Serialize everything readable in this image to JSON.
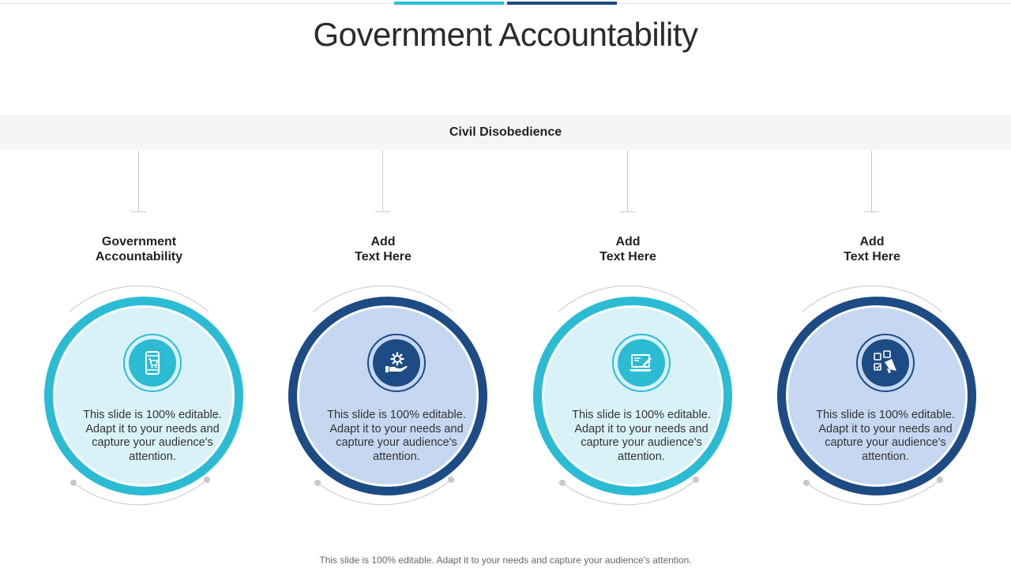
{
  "title": "Government Accountability",
  "band_label": "Civil Disobedience",
  "columns": [
    {
      "heading_line1": "Government",
      "heading_line2": "Accountability",
      "body": "This slide is 100% editable. Adapt it to your needs and capture your audience's attention.",
      "icon": "mobile-shopping-cart-icon",
      "theme": "light"
    },
    {
      "heading_line1": "Add",
      "heading_line2": "Text Here",
      "body": "This slide is 100% editable. Adapt it to your needs and capture your audience's attention.",
      "icon": "hand-gear-icon",
      "theme": "dark"
    },
    {
      "heading_line1": "Add",
      "heading_line2": "Text Here",
      "body": "This slide is 100% editable. Adapt it to your needs and capture your audience's attention.",
      "icon": "laptop-edit-icon",
      "theme": "light"
    },
    {
      "heading_line1": "Add",
      "heading_line2": "Text Here",
      "body": "This slide is 100% editable. Adapt it to your needs and capture your audience's attention.",
      "icon": "megaphone-notes-icon",
      "theme": "dark"
    }
  ],
  "footer": "This slide is 100% editable. Adapt it to your needs and capture your audience's attention.",
  "colors": {
    "light_ring": "#2bbcd4",
    "light_fill": "#d9f2f8",
    "dark_ring": "#1d4b84",
    "dark_fill": "#c5d7f1"
  }
}
